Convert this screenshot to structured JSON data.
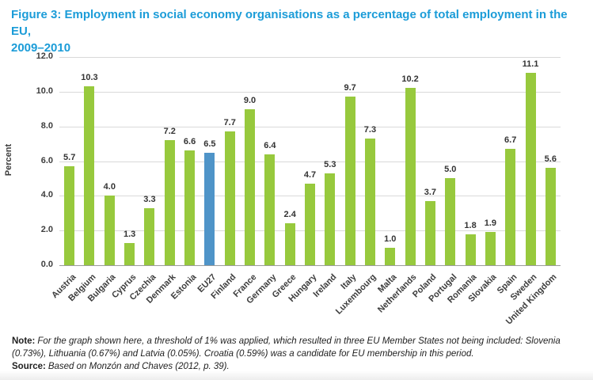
{
  "title": {
    "text": "Figure 3: Employment in social economy organisations as a percentage of total employment in the EU,\n2009–2010"
  },
  "chart_data": {
    "type": "bar",
    "title": "Figure 3: Employment in social economy organisations as a percentage of total employment in the EU, 2009–2010",
    "xlabel": "",
    "ylabel": "Percent",
    "ylim": [
      0,
      12
    ],
    "ytick_interval": 2,
    "ytick_labels": [
      "0.0",
      "2.0",
      "4.0",
      "6.0",
      "8.0",
      "10.0",
      "12.0"
    ],
    "grid": true,
    "legend": false,
    "categories": [
      "Austria",
      "Belgium",
      "Bulgaria",
      "Cyprus",
      "Czechia",
      "Denmark",
      "Estonia",
      "EU27",
      "Finland",
      "France",
      "Germany",
      "Greece",
      "Hungary",
      "Ireland",
      "Italy",
      "Luxembourg",
      "Malta",
      "Netherlands",
      "Poland",
      "Portugal",
      "Romania",
      "Slovakia",
      "Spain",
      "Sweden",
      "United Kingdom"
    ],
    "values": [
      5.7,
      10.3,
      4.0,
      1.3,
      3.3,
      7.2,
      6.6,
      6.5,
      7.7,
      9.0,
      6.4,
      2.4,
      4.7,
      5.3,
      9.7,
      7.3,
      1.0,
      10.2,
      3.7,
      5.0,
      1.8,
      1.9,
      6.7,
      11.1,
      5.6
    ],
    "highlight_category": "EU27"
  },
  "note": {
    "label": "Note:",
    "text": "For the graph shown here, a threshold of 1% was applied, which resulted in three EU Member States not being included: Slovenia (0.73%), Lithuania (0.67%) and Latvia (0.05%). Croatia (0.59%) was a candidate for EU membership in this period."
  },
  "source": {
    "label": "Source:",
    "text": "Based on Monzón and Chaves (2012, p. 39)."
  },
  "colors": {
    "title_blue": "#1b9cd8",
    "bar_green": "#97c93d",
    "bar_highlight_blue": "#4f94c8",
    "gridline": "#d9d9d9",
    "axis_line": "#9b9b9b",
    "label_text": "#3d3d3d"
  }
}
